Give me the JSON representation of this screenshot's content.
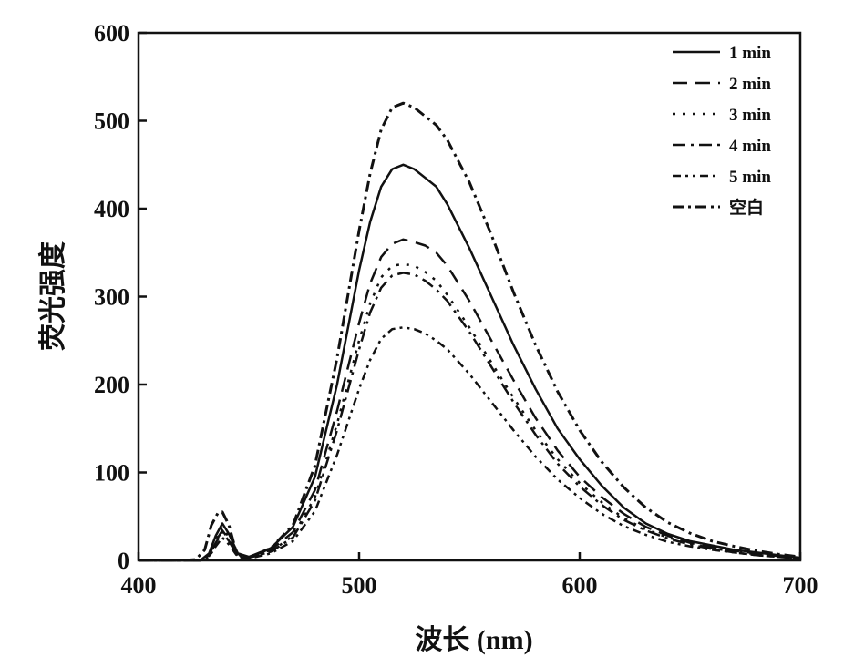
{
  "chart_data": {
    "type": "line",
    "xlabel": "波长 (nm)",
    "ylabel": "荧光强度",
    "xlim": [
      400,
      700
    ],
    "ylim": [
      0,
      600
    ],
    "xticks": [
      400,
      500,
      600,
      700
    ],
    "yticks": [
      0,
      100,
      200,
      300,
      400,
      500,
      600
    ],
    "grid": false,
    "legend_position": "top-right",
    "series": [
      {
        "name": "1 min",
        "dash": "solid",
        "x": [
          400,
          420,
          428,
          432,
          435,
          438,
          441,
          445,
          450,
          460,
          470,
          480,
          490,
          500,
          505,
          510,
          515,
          520,
          525,
          530,
          535,
          540,
          550,
          560,
          570,
          580,
          590,
          600,
          610,
          620,
          630,
          640,
          650,
          660,
          670,
          680,
          690,
          700
        ],
        "y": [
          0,
          0,
          0,
          8,
          28,
          42,
          30,
          8,
          4,
          14,
          38,
          95,
          200,
          330,
          385,
          425,
          445,
          450,
          445,
          435,
          425,
          405,
          355,
          300,
          245,
          195,
          150,
          115,
          85,
          60,
          42,
          30,
          22,
          17,
          12,
          9,
          6,
          3
        ]
      },
      {
        "name": "2 min",
        "dash": "longdash",
        "x": [
          400,
          420,
          428,
          432,
          435,
          438,
          441,
          445,
          450,
          460,
          470,
          480,
          490,
          500,
          505,
          510,
          515,
          520,
          525,
          530,
          535,
          540,
          550,
          560,
          570,
          580,
          590,
          600,
          610,
          620,
          630,
          640,
          650,
          660,
          670,
          680,
          690,
          700
        ],
        "y": [
          0,
          0,
          0,
          6,
          22,
          34,
          24,
          6,
          3,
          12,
          32,
          80,
          170,
          270,
          315,
          345,
          360,
          365,
          362,
          358,
          350,
          335,
          295,
          250,
          205,
          162,
          125,
          95,
          72,
          53,
          38,
          28,
          20,
          15,
          11,
          8,
          5,
          2
        ]
      },
      {
        "name": "3 min",
        "dash": "dot",
        "x": [
          400,
          420,
          428,
          432,
          435,
          438,
          441,
          445,
          450,
          460,
          470,
          480,
          490,
          500,
          505,
          510,
          515,
          520,
          525,
          530,
          535,
          540,
          550,
          560,
          570,
          580,
          590,
          600,
          610,
          620,
          630,
          640,
          650,
          660,
          670,
          680,
          690,
          700
        ],
        "y": [
          0,
          0,
          0,
          6,
          24,
          38,
          26,
          6,
          3,
          10,
          28,
          72,
          155,
          250,
          292,
          322,
          335,
          337,
          335,
          328,
          318,
          302,
          265,
          225,
          185,
          148,
          115,
          88,
          66,
          48,
          35,
          26,
          19,
          14,
          10,
          7,
          5,
          2
        ]
      },
      {
        "name": "4 min",
        "dash": "dashdot",
        "x": [
          400,
          420,
          428,
          432,
          435,
          438,
          441,
          445,
          450,
          460,
          470,
          480,
          490,
          500,
          505,
          510,
          515,
          520,
          525,
          530,
          535,
          540,
          550,
          560,
          570,
          580,
          590,
          600,
          610,
          620,
          630,
          640,
          650,
          660,
          670,
          680,
          690,
          700
        ],
        "y": [
          0,
          0,
          0,
          5,
          20,
          32,
          22,
          5,
          3,
          10,
          26,
          68,
          148,
          240,
          282,
          310,
          324,
          327,
          325,
          318,
          308,
          295,
          260,
          220,
          180,
          143,
          110,
          84,
          63,
          46,
          34,
          25,
          18,
          13,
          9,
          6,
          4,
          2
        ]
      },
      {
        "name": "5 min",
        "dash": "dashdotdot",
        "x": [
          400,
          420,
          428,
          432,
          435,
          438,
          441,
          445,
          450,
          460,
          470,
          480,
          490,
          500,
          505,
          510,
          515,
          520,
          525,
          530,
          535,
          540,
          550,
          560,
          570,
          580,
          590,
          600,
          610,
          620,
          630,
          640,
          650,
          660,
          670,
          680,
          690,
          700
        ],
        "y": [
          0,
          0,
          0,
          4,
          16,
          26,
          18,
          4,
          2,
          8,
          22,
          56,
          120,
          195,
          228,
          252,
          263,
          265,
          263,
          258,
          250,
          240,
          212,
          180,
          148,
          118,
          92,
          71,
          53,
          39,
          29,
          21,
          16,
          12,
          9,
          6,
          4,
          2
        ]
      },
      {
        "name": "空白",
        "dash": "dashdot-bold",
        "x": [
          400,
          420,
          426,
          430,
          433,
          436,
          438,
          441,
          444,
          447,
          450,
          460,
          470,
          480,
          490,
          500,
          505,
          510,
          515,
          520,
          525,
          530,
          535,
          540,
          550,
          560,
          570,
          580,
          590,
          600,
          610,
          620,
          630,
          640,
          650,
          660,
          670,
          680,
          690,
          700
        ],
        "y": [
          0,
          0,
          1,
          12,
          40,
          54,
          55,
          40,
          12,
          3,
          3,
          14,
          40,
          108,
          230,
          375,
          440,
          490,
          515,
          520,
          515,
          505,
          495,
          478,
          430,
          370,
          305,
          245,
          192,
          148,
          112,
          83,
          60,
          43,
          31,
          22,
          16,
          11,
          7,
          4
        ]
      }
    ]
  }
}
